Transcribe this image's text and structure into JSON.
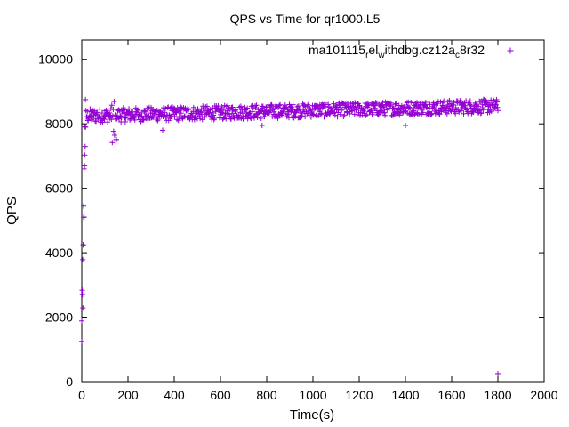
{
  "chart_data": {
    "type": "scatter",
    "title": "QPS vs Time for qr1000.L5",
    "xlabel": "Time(s)",
    "ylabel": "QPS",
    "xlim": [
      0,
      2000
    ],
    "ylim": [
      0,
      10600
    ],
    "xticks": [
      0,
      200,
      400,
      600,
      800,
      1000,
      1200,
      1400,
      1600,
      1800,
      2000
    ],
    "yticks": [
      0,
      2000,
      4000,
      6000,
      8000,
      10000
    ],
    "grid": false,
    "legend_position": "top-right",
    "marker": "+",
    "color": "#9400d3",
    "series": [
      {
        "name_parts": [
          {
            "text": "ma101115",
            "sub": false
          },
          {
            "text": "r",
            "sub": true
          },
          {
            "text": "el",
            "sub": false
          },
          {
            "text": "w",
            "sub": true
          },
          {
            "text": "ithdbg.cz12a",
            "sub": false
          },
          {
            "text": "c",
            "sub": true
          },
          {
            "text": "8r32",
            "sub": false
          }
        ],
        "profile": {
          "x_start": 0,
          "x_end": 1800,
          "sample_interval_s": 2,
          "ramp_end_s": 16,
          "ramp_start_qps": 1000,
          "plateau_qps_start": 8250,
          "plateau_qps_end": 8550,
          "spread_qps": 220,
          "dip_around_s": 140,
          "dip_min_qps": 7400,
          "outlier_points": [
            [
              1800,
              250
            ],
            [
              1400,
              7950
            ],
            [
              350,
              7800
            ],
            [
              780,
              7950
            ]
          ]
        }
      }
    ]
  }
}
